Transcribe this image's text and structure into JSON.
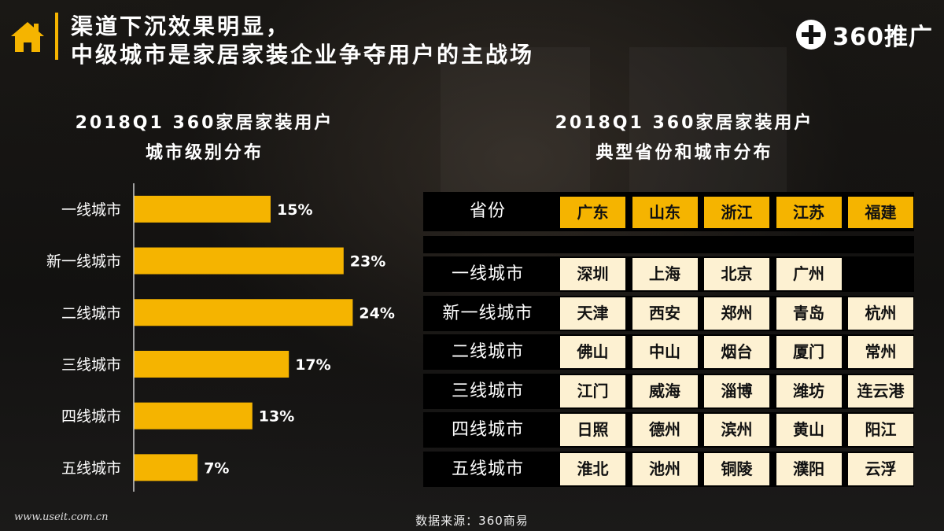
{
  "header": {
    "title_line1": "渠道下沉效果明显，",
    "title_line2": "中级城市是家居家装企业争夺用户的主战场",
    "brand_text": "360推广",
    "house_icon": "house-icon",
    "brand_icon": "plus-circle-icon"
  },
  "colors": {
    "accent": "#f5b400",
    "cell_bg": "#fdf1d2",
    "table_row_bg": "#000000"
  },
  "chart_data": {
    "type": "bar",
    "orientation": "horizontal",
    "title": "2018Q1 360家居家装用户城市级别分布",
    "title_line1": "2018Q1 360家居家装用户",
    "title_line2": "城市级别分布",
    "categories": [
      "一线城市",
      "新一线城市",
      "二线城市",
      "三线城市",
      "四线城市",
      "五线城市"
    ],
    "values": [
      15,
      23,
      24,
      17,
      13,
      7
    ],
    "value_labels": [
      "15%",
      "23%",
      "24%",
      "17%",
      "13%",
      "7%"
    ],
    "xlim": [
      0,
      25
    ],
    "grid": false,
    "legend": "none"
  },
  "table": {
    "title_line1": "2018Q1 360家居家装用户",
    "title_line2": "典型省份和城市分布",
    "province_label": "省份",
    "provinces": [
      "广东",
      "山东",
      "浙江",
      "江苏",
      "福建"
    ],
    "rows": [
      {
        "label": "一线城市",
        "cities": [
          "深圳",
          "上海",
          "北京",
          "广州",
          ""
        ]
      },
      {
        "label": "新一线城市",
        "cities": [
          "天津",
          "西安",
          "郑州",
          "青岛",
          "杭州"
        ]
      },
      {
        "label": "二线城市",
        "cities": [
          "佛山",
          "中山",
          "烟台",
          "厦门",
          "常州"
        ]
      },
      {
        "label": "三线城市",
        "cities": [
          "江门",
          "威海",
          "淄博",
          "潍坊",
          "连云港"
        ]
      },
      {
        "label": "四线城市",
        "cities": [
          "日照",
          "德州",
          "滨州",
          "黄山",
          "阳江"
        ]
      },
      {
        "label": "五线城市",
        "cities": [
          "淮北",
          "池州",
          "铜陵",
          "濮阳",
          "云浮"
        ]
      }
    ]
  },
  "footer": {
    "source": "数据来源：360商易",
    "watermark": "www.useit.com.cn"
  }
}
